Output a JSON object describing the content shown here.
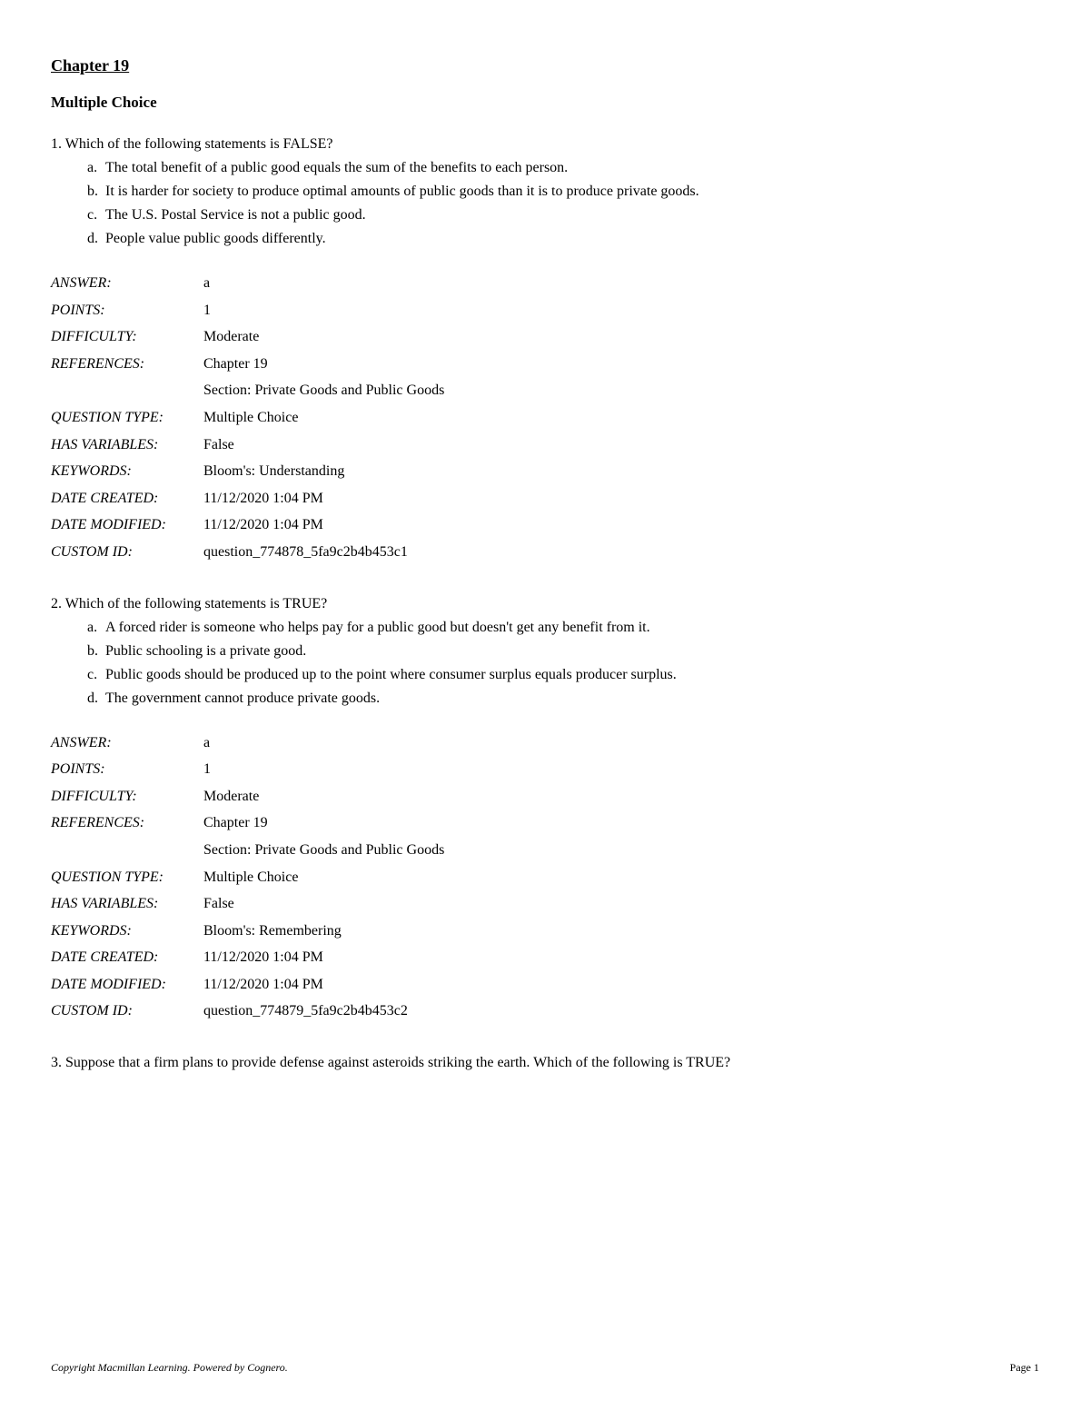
{
  "chapter_title": "Chapter 19",
  "section_heading": "Multiple Choice",
  "questions": [
    {
      "number": "1.",
      "text": "Which of the following statements is FALSE?",
      "options": [
        {
          "letter": "a.",
          "text": "The total benefit of a public good equals the sum of the benefits to each person."
        },
        {
          "letter": "b.",
          "text": "It is harder for society to produce optimal amounts of public goods than it is to produce private goods."
        },
        {
          "letter": "c.",
          "text": "The U.S. Postal Service is not a public good."
        },
        {
          "letter": "d.",
          "text": "People value public goods differently."
        }
      ],
      "meta": {
        "answer": "a",
        "points": "1",
        "difficulty": "Moderate",
        "references_line1": "Chapter 19",
        "references_line2": "Section: Private Goods and Public Goods",
        "question_type": "Multiple Choice",
        "has_variables": "False",
        "keywords": "Bloom's: Understanding",
        "date_created": "11/12/2020 1:04 PM",
        "date_modified": "11/12/2020 1:04 PM",
        "custom_id": "question_774878_5fa9c2b4b453c1"
      }
    },
    {
      "number": "2.",
      "text": "Which of the following statements is TRUE?",
      "options": [
        {
          "letter": "a.",
          "text": "A forced rider is someone who helps pay for a public good but doesn't get any benefit from it."
        },
        {
          "letter": "b.",
          "text": "Public schooling is a private good."
        },
        {
          "letter": "c.",
          "text": "Public goods should be produced up to the point where consumer surplus equals producer surplus."
        },
        {
          "letter": "d.",
          "text": "The government cannot produce private goods."
        }
      ],
      "meta": {
        "answer": "a",
        "points": "1",
        "difficulty": "Moderate",
        "references_line1": "Chapter 19",
        "references_line2": "Section: Private Goods and Public Goods",
        "question_type": "Multiple Choice",
        "has_variables": "False",
        "keywords": "Bloom's: Remembering",
        "date_created": "11/12/2020 1:04 PM",
        "date_modified": "11/12/2020 1:04 PM",
        "custom_id": "question_774879_5fa9c2b4b453c2"
      }
    }
  ],
  "partial_question": {
    "number": "3.",
    "text": "Suppose that a firm plans to provide defense against asteroids striking the earth. Which of the following is TRUE?"
  },
  "meta_labels": {
    "answer": "ANSWER:",
    "points": "POINTS:",
    "difficulty": "DIFFICULTY:",
    "references": "REFERENCES:",
    "question_type": "QUESTION TYPE:",
    "has_variables": "HAS VARIABLES:",
    "keywords": "KEYWORDS:",
    "date_created": "DATE CREATED:",
    "date_modified": "DATE MODIFIED:",
    "custom_id": "CUSTOM ID:"
  },
  "footer": {
    "copyright": "Copyright Macmillan Learning. Powered by Cognero.",
    "page": "Page 1"
  }
}
